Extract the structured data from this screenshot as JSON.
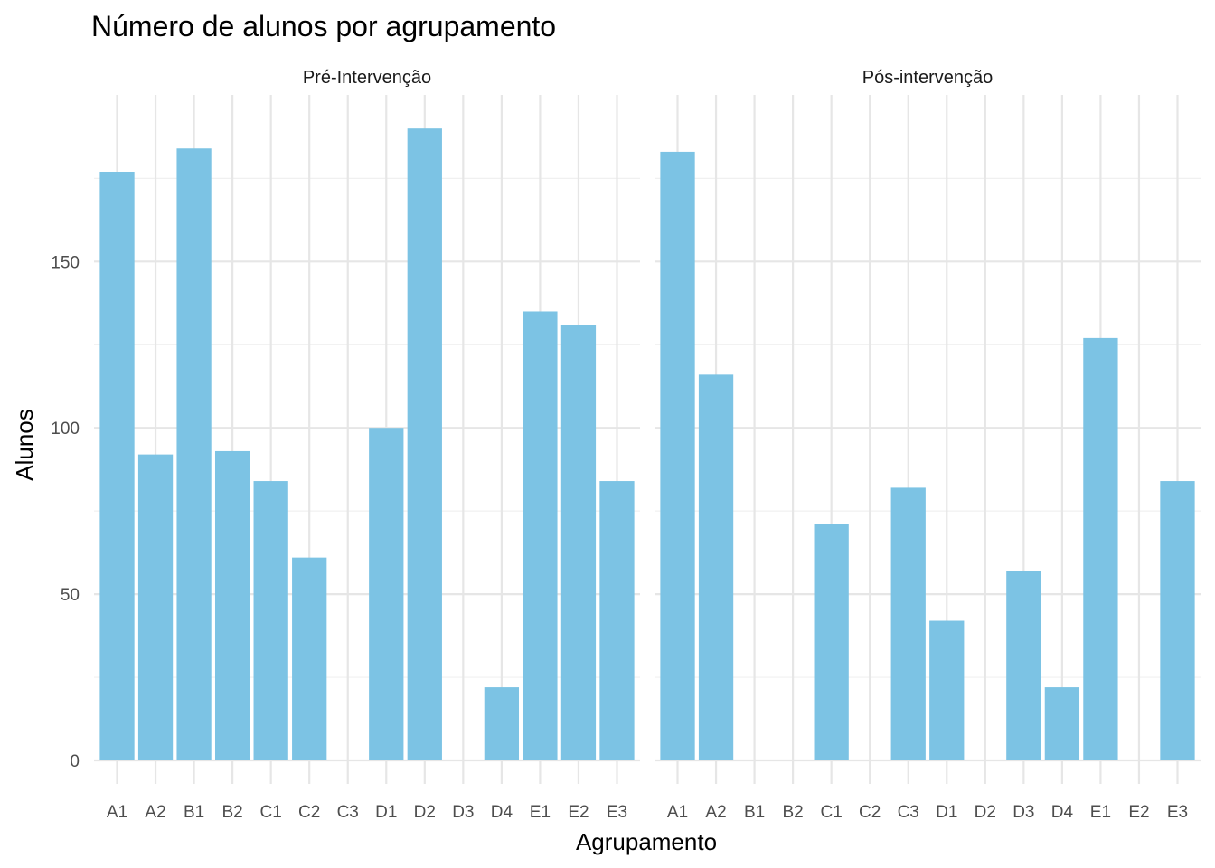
{
  "chart_data": {
    "type": "bar",
    "title": "Número de alunos por agrupamento",
    "xlabel": "Agrupamento",
    "ylabel": "Alunos",
    "ylim": [
      0,
      200
    ],
    "yticks": [
      0,
      50,
      100,
      150
    ],
    "grid": true,
    "bar_color": "#7cc3e4",
    "categories": [
      "A1",
      "A2",
      "B1",
      "B2",
      "C1",
      "C2",
      "C3",
      "D1",
      "D2",
      "D3",
      "D4",
      "E1",
      "E2",
      "E3"
    ],
    "panels": [
      {
        "name": "Pré-Intervenção",
        "values": [
          177,
          92,
          184,
          93,
          84,
          61,
          0,
          100,
          190,
          0,
          22,
          135,
          131,
          84
        ]
      },
      {
        "name": "Pós-intervenção",
        "values": [
          183,
          116,
          0,
          0,
          71,
          0,
          82,
          42,
          0,
          57,
          22,
          127,
          0,
          84
        ]
      }
    ]
  }
}
